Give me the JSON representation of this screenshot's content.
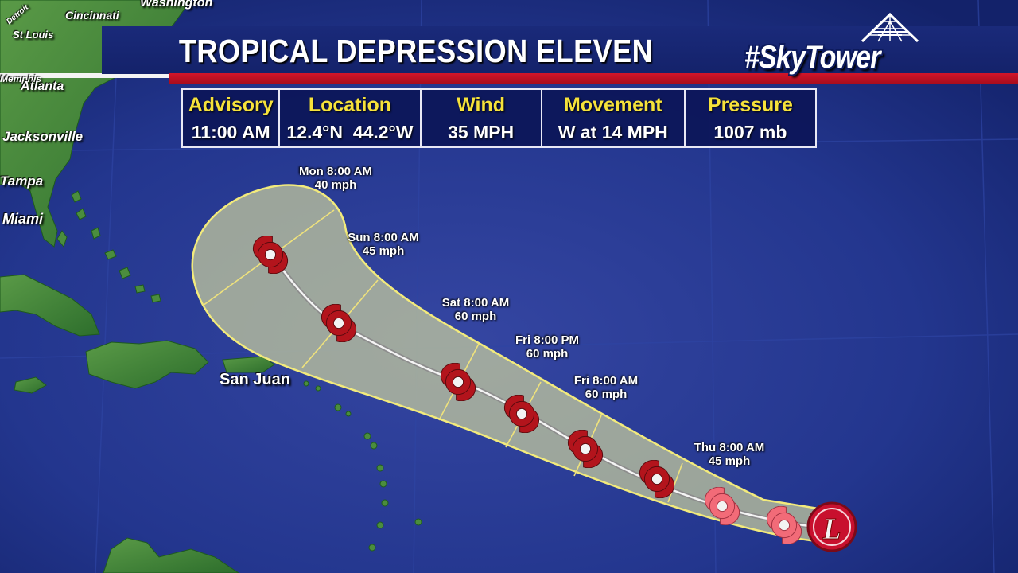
{
  "title": "TROPICAL DEPRESSION ELEVEN",
  "brand": "#SkyTower",
  "info_table": {
    "advisory": {
      "label": "Advisory",
      "value": "11:00 AM"
    },
    "location": {
      "label": "Location",
      "value": "12.4°N  44.2°W"
    },
    "wind": {
      "label": "Wind",
      "value": "35 MPH"
    },
    "movement": {
      "label": "Movement",
      "value": "W at 14 MPH"
    },
    "pressure": {
      "label": "Pressure",
      "value": "1007 mb"
    }
  },
  "forecast_points": {
    "mon": {
      "time": "Mon 8:00 AM",
      "wind": "40 mph"
    },
    "sun": {
      "time": "Sun 8:00 AM",
      "wind": "45 mph"
    },
    "sat": {
      "time": "Sat 8:00 AM",
      "wind": "60 mph"
    },
    "fri_pm": {
      "time": "Fri 8:00 PM",
      "wind": "60 mph"
    },
    "fri_am": {
      "time": "Fri 8:00 AM",
      "wind": "60 mph"
    },
    "thu": {
      "time": "Thu 8:00 AM",
      "wind": "45 mph"
    }
  },
  "current_marker_letter": "L",
  "cities": {
    "washington": "Washington",
    "cincinnati": "Cincinnati",
    "st_louis": "St Louis",
    "atlanta": "Atlanta",
    "jacksonville": "Jacksonville",
    "tampa": "Tampa",
    "miami": "Miami",
    "san_juan": "San Juan",
    "detroit": "Detroit",
    "memphis": "Memphis"
  },
  "colors": {
    "ocean": "#1f3290",
    "land": "#3f8a3a",
    "cone": "#c9cf9e",
    "banner": "#14226a",
    "accent_red": "#c8102e",
    "header_yellow": "#f6e23b",
    "storm_red": "#b3141c",
    "storm_pink": "#f26b78"
  }
}
